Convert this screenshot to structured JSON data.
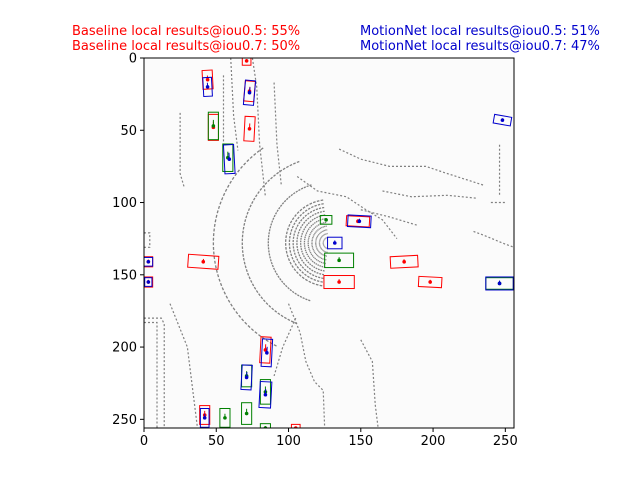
{
  "header": {
    "baseline_iou05": "Baseline local results@iou0.5: 55%",
    "baseline_iou07": "Baseline local results@iou0.7: 50%",
    "motionnet_iou05": "MotionNet local results@iou0.5: 51%",
    "motionnet_iou07": "MotionNet local results@iou0.7: 47%",
    "baseline_color": "#ff0000",
    "motionnet_color": "#0000cc"
  },
  "chart_data": {
    "type": "scatter",
    "xlim": [
      0,
      256
    ],
    "ylim": [
      256,
      0
    ],
    "x_ticks": [
      0,
      50,
      100,
      150,
      200,
      250
    ],
    "y_ticks": [
      0,
      50,
      100,
      150,
      200,
      250
    ],
    "x_tick_labels": [
      "0",
      "50",
      "100",
      "150",
      "200",
      "250"
    ],
    "y_tick_labels": [
      "0",
      "50",
      "100",
      "150",
      "200",
      "250"
    ],
    "grid": false,
    "colors": {
      "ground_truth": "#008000",
      "baseline": "#ff0000",
      "motionnet": "#0000cc",
      "point_cloud": "#808080",
      "background": "#fbfbfb"
    },
    "boxes": [
      {
        "series": "baseline",
        "cx": 44,
        "cy": 15,
        "w": 7,
        "h": 13,
        "angle": -3
      },
      {
        "series": "motionnet",
        "cx": 44,
        "cy": 20,
        "w": 6,
        "h": 13,
        "angle": -3
      },
      {
        "series": "baseline",
        "cx": 71,
        "cy": 2,
        "w": 6,
        "h": 6,
        "angle": 0
      },
      {
        "series": "baseline",
        "cx": 73,
        "cy": 23,
        "w": 7,
        "h": 14,
        "angle": 5
      },
      {
        "series": "motionnet",
        "cx": 73,
        "cy": 24,
        "w": 7,
        "h": 17,
        "angle": 5
      },
      {
        "series": "baseline",
        "cx": 48,
        "cy": 48,
        "w": 7,
        "h": 18,
        "angle": 0
      },
      {
        "series": "ground_truth",
        "cx": 48,
        "cy": 47,
        "w": 7,
        "h": 19,
        "angle": 0
      },
      {
        "series": "baseline",
        "cx": 73,
        "cy": 49,
        "w": 7,
        "h": 17,
        "angle": 3
      },
      {
        "series": "ground_truth",
        "cx": 58,
        "cy": 69,
        "w": 7,
        "h": 19,
        "angle": 0
      },
      {
        "series": "motionnet",
        "cx": 59,
        "cy": 70,
        "w": 7,
        "h": 20,
        "angle": -3
      },
      {
        "series": "motionnet",
        "cx": 248,
        "cy": 43,
        "w": 12,
        "h": 6,
        "angle": 10
      },
      {
        "series": "ground_truth",
        "cx": 126,
        "cy": 112,
        "w": 8,
        "h": 6,
        "angle": 0
      },
      {
        "series": "baseline",
        "cx": 148,
        "cy": 113,
        "w": 16,
        "h": 7,
        "angle": 3
      },
      {
        "series": "motionnet",
        "cx": 149,
        "cy": 113,
        "w": 16,
        "h": 8,
        "angle": 3
      },
      {
        "series": "motionnet",
        "cx": 132,
        "cy": 128,
        "w": 10,
        "h": 8,
        "angle": 0
      },
      {
        "series": "ground_truth",
        "cx": 135,
        "cy": 140,
        "w": 20,
        "h": 10,
        "angle": 0
      },
      {
        "series": "baseline",
        "cx": 135,
        "cy": 155,
        "w": 21,
        "h": 9,
        "angle": 0
      },
      {
        "series": "baseline",
        "cx": 41,
        "cy": 141,
        "w": 21,
        "h": 9,
        "angle": 4
      },
      {
        "series": "baseline",
        "cx": 180,
        "cy": 141,
        "w": 19,
        "h": 8,
        "angle": -3
      },
      {
        "series": "baseline",
        "cx": 198,
        "cy": 155,
        "w": 16,
        "h": 7,
        "angle": 3
      },
      {
        "series": "ground_truth",
        "cx": 246,
        "cy": 156,
        "w": 19,
        "h": 8,
        "angle": 0
      },
      {
        "series": "motionnet",
        "cx": 246,
        "cy": 156,
        "w": 19,
        "h": 9,
        "angle": 0
      },
      {
        "series": "baseline",
        "cx": 3,
        "cy": 141,
        "w": 6,
        "h": 7,
        "angle": 0
      },
      {
        "series": "motionnet",
        "cx": 3,
        "cy": 141,
        "w": 6,
        "h": 6,
        "angle": 0
      },
      {
        "series": "baseline",
        "cx": 3,
        "cy": 155,
        "w": 6,
        "h": 7,
        "angle": 0
      },
      {
        "series": "motionnet",
        "cx": 3,
        "cy": 155,
        "w": 5,
        "h": 6,
        "angle": 0
      },
      {
        "series": "baseline",
        "cx": 84,
        "cy": 202,
        "w": 7,
        "h": 18,
        "angle": 3
      },
      {
        "series": "motionnet",
        "cx": 85,
        "cy": 204,
        "w": 7,
        "h": 19,
        "angle": 3
      },
      {
        "series": "ground_truth",
        "cx": 71,
        "cy": 220,
        "w": 7,
        "h": 15,
        "angle": 0
      },
      {
        "series": "motionnet",
        "cx": 71,
        "cy": 221,
        "w": 7,
        "h": 17,
        "angle": 3
      },
      {
        "series": "ground_truth",
        "cx": 84,
        "cy": 231,
        "w": 7,
        "h": 17,
        "angle": 0
      },
      {
        "series": "motionnet",
        "cx": 84,
        "cy": 233,
        "w": 8,
        "h": 18,
        "angle": 3
      },
      {
        "series": "ground_truth",
        "cx": 71,
        "cy": 246,
        "w": 7,
        "h": 15,
        "angle": 0
      },
      {
        "series": "baseline",
        "cx": 42,
        "cy": 247,
        "w": 7,
        "h": 13,
        "angle": 0
      },
      {
        "series": "motionnet",
        "cx": 42,
        "cy": 249,
        "w": 6,
        "h": 13,
        "angle": 0
      },
      {
        "series": "ground_truth",
        "cx": 56,
        "cy": 249,
        "w": 7,
        "h": 13,
        "angle": 0
      },
      {
        "series": "ground_truth",
        "cx": 84,
        "cy": 256,
        "w": 7,
        "h": 6,
        "angle": 0
      },
      {
        "series": "baseline",
        "cx": 105,
        "cy": 256,
        "w": 6,
        "h": 5,
        "angle": 0
      }
    ]
  }
}
